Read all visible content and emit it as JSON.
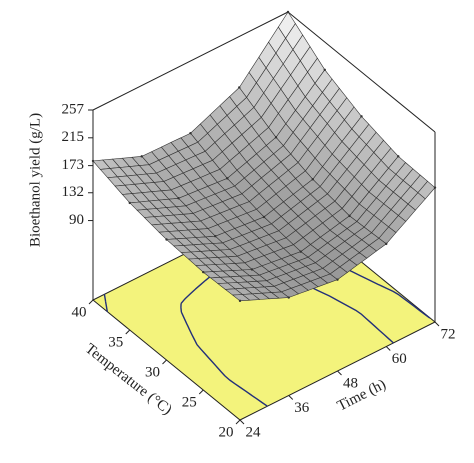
{
  "chart_data": {
    "type": "surface",
    "x_label": "Time (h)",
    "y_label": "Temperature (°C)",
    "z_label": "Bioethanol yield (g/L)",
    "x": [
      24,
      36,
      48,
      60,
      72
    ],
    "y": [
      20,
      25,
      30,
      35,
      40
    ],
    "z": [
      [
        150,
        118,
        108,
        125,
        173
      ],
      [
        148,
        115,
        105,
        122,
        175
      ],
      [
        152,
        120,
        112,
        132,
        190
      ],
      [
        162,
        132,
        125,
        150,
        215
      ],
      [
        180,
        150,
        148,
        180,
        257
      ]
    ],
    "xlim": [
      24,
      72
    ],
    "ylim": [
      20,
      40
    ],
    "zlim": [
      -30,
      257
    ],
    "xticks": [
      24,
      36,
      48,
      60,
      72
    ],
    "yticks": [
      20,
      25,
      30,
      35,
      40
    ],
    "zticks": [
      90,
      132,
      173,
      215,
      257
    ],
    "floor_color": "#f3f37c",
    "contour_color": "#23307a",
    "surface_stroke": "#333333"
  }
}
